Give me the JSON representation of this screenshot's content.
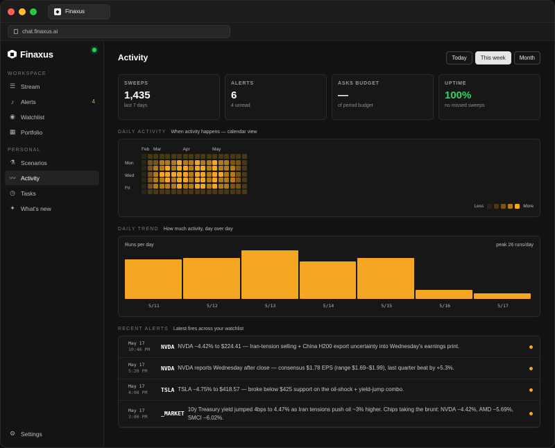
{
  "browser": {
    "tab_title": "Finaxus",
    "url": "chat.finaxus.ai"
  },
  "sidebar": {
    "brand": "Finaxus",
    "workspace_label": "WORKSPACE",
    "personal_label": "PERSONAL",
    "workspace_items": [
      {
        "label": "Stream",
        "icon": "stream-icon"
      },
      {
        "label": "Alerts",
        "icon": "bell-icon",
        "badge": "4"
      },
      {
        "label": "Watchlist",
        "icon": "eye-icon"
      },
      {
        "label": "Portfolio",
        "icon": "briefcase-icon"
      }
    ],
    "personal_items": [
      {
        "label": "Scenarios",
        "icon": "flask-icon"
      },
      {
        "label": "Activity",
        "icon": "activity-icon",
        "active": true
      },
      {
        "label": "Tasks",
        "icon": "clock-icon"
      },
      {
        "label": "What's new",
        "icon": "sparkle-icon"
      }
    ],
    "settings_label": "Settings"
  },
  "header": {
    "title": "Activity",
    "ranges": [
      "Today",
      "This week",
      "Month"
    ],
    "active_range": "This week"
  },
  "stats": [
    {
      "label": "SWEEPS",
      "value": "1,435",
      "sub": "last 7 days"
    },
    {
      "label": "ALERTS",
      "value": "6",
      "sub": "4 unread"
    },
    {
      "label": "ASKS BUDGET",
      "value": "—",
      "sub": "of period budget"
    },
    {
      "label": "UPTIME",
      "value": "100%",
      "sub": "no missed sweeps",
      "accent": "#2fd466"
    }
  ],
  "daily_activity": {
    "title": "DAILY ACTIVITY",
    "desc": "When activity happens — calendar view",
    "months": [
      "Feb",
      "Mar",
      "Apr",
      "May"
    ],
    "day_labels": [
      "Mon",
      "Wed",
      "Fri"
    ],
    "legend_less": "Less",
    "legend_more": "More",
    "levels": [
      [
        0,
        0,
        0,
        0,
        0,
        0,
        0
      ],
      [
        1,
        2,
        2,
        2,
        2,
        2,
        1
      ],
      [
        1,
        2,
        3,
        3,
        3,
        3,
        1
      ],
      [
        1,
        3,
        3,
        4,
        3,
        3,
        1
      ],
      [
        1,
        3,
        4,
        4,
        4,
        3,
        1
      ],
      [
        1,
        3,
        3,
        4,
        3,
        3,
        1
      ],
      [
        1,
        4,
        4,
        4,
        4,
        4,
        1
      ],
      [
        1,
        3,
        4,
        4,
        4,
        3,
        1
      ],
      [
        1,
        3,
        3,
        3,
        3,
        3,
        1
      ],
      [
        1,
        4,
        4,
        4,
        4,
        4,
        1
      ],
      [
        1,
        3,
        4,
        4,
        4,
        4,
        1
      ],
      [
        1,
        3,
        3,
        3,
        3,
        3,
        1
      ],
      [
        1,
        4,
        4,
        4,
        4,
        4,
        1
      ],
      [
        1,
        3,
        3,
        4,
        3,
        3,
        1
      ],
      [
        1,
        3,
        3,
        3,
        3,
        3,
        1
      ],
      [
        1,
        2,
        3,
        3,
        3,
        2,
        1
      ],
      [
        1,
        2,
        2,
        2,
        2,
        2,
        1
      ],
      [
        1,
        1,
        1,
        1,
        1,
        1,
        1
      ]
    ],
    "colors": [
      "#2a2419",
      "#4a3814",
      "#7a5510",
      "#b37a17",
      "#f5a623"
    ]
  },
  "daily_trend": {
    "title": "DAILY TREND",
    "desc": "How much activity, day over day",
    "chart_label": "Runs per day",
    "peak_label": "peak 26 runs/day",
    "chart_data": {
      "type": "bar",
      "categories": [
        "5/11",
        "5/12",
        "5/13",
        "5/14",
        "5/15",
        "5/16",
        "5/17"
      ],
      "values": [
        21,
        22,
        26,
        20,
        22,
        5,
        3
      ],
      "ylabel": "Runs per day",
      "ylim": [
        0,
        26
      ]
    }
  },
  "recent_alerts": {
    "title": "RECENT ALERTS",
    "desc": "Latest fires across your watchlist",
    "items": [
      {
        "date": "May 17",
        "time": "10:46 PM",
        "ticker": "NVDA",
        "text": "NVDA −4.42% to $224.41 — Iran-tension selling + China H200 export uncertainty into Wednesday's earnings print."
      },
      {
        "date": "May 17",
        "time": "5:20 PM",
        "ticker": "NVDA",
        "text": "NVDA reports Wednesday after close — consensus $1.78 EPS (range $1.69–$1.99), last quarter beat by +5.3%."
      },
      {
        "date": "May 17",
        "time": "4:08 PM",
        "ticker": "TSLA",
        "text": "TSLA −4.75% to $418.57 — broke below $425 support on the oil-shock + yield-jump combo."
      },
      {
        "date": "May 17",
        "time": "3:00 PM",
        "ticker": "_MARKET",
        "text": "10y Treasury yield jumped 4bps to 4.47% as Iran tensions push oil ~3% higher. Chips taking the brunt: NVDA −4.42%, AMD −5.69%, SMCI −6.02%."
      }
    ]
  }
}
